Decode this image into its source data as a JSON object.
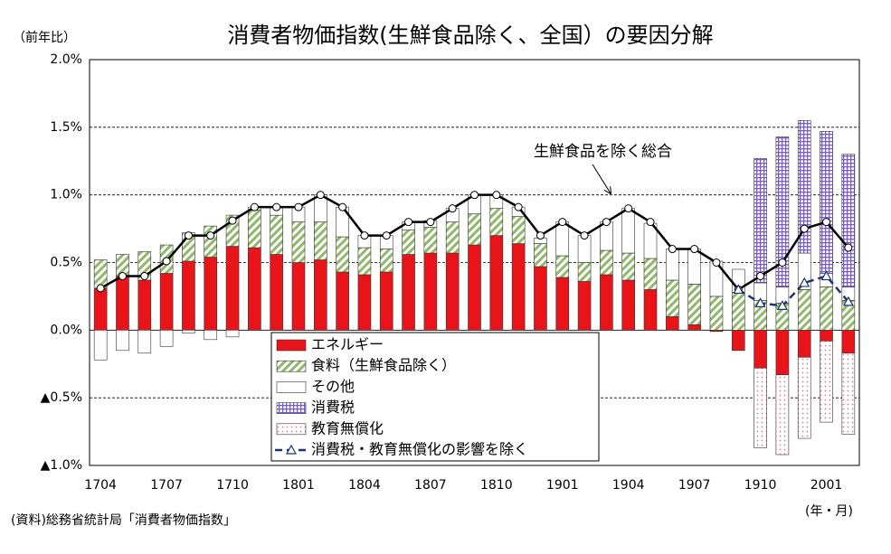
{
  "chart_data": {
    "type": "bar",
    "title": "消費者物価指数(生鮮食品除く、全国）の要因分解",
    "y_label": "（前年比）",
    "x_label": "(年・月)",
    "source": "(資料)総務省統計局「消費者物価指数」",
    "categories": [
      "1704",
      null,
      null,
      "1707",
      null,
      null,
      "1710",
      null,
      null,
      "1801",
      null,
      null,
      "1804",
      null,
      null,
      "1807",
      null,
      null,
      "1810",
      null,
      null,
      "1901",
      null,
      null,
      "1904",
      null,
      null,
      "1907",
      null,
      null,
      "1910",
      null,
      null,
      "2001",
      null
    ],
    "series": [
      {
        "name": "エネルギー",
        "type": "bar",
        "color": "#e8141a",
        "pattern": "solid",
        "values": [
          0.31,
          0.4,
          0.37,
          0.42,
          0.51,
          0.54,
          0.62,
          0.61,
          0.56,
          0.5,
          0.52,
          0.43,
          0.41,
          0.43,
          0.56,
          0.57,
          0.57,
          0.63,
          0.7,
          0.64,
          0.47,
          0.39,
          0.36,
          0.41,
          0.37,
          0.3,
          0.1,
          0.04,
          -0.01,
          -0.15,
          -0.28,
          -0.33,
          -0.2,
          -0.08,
          -0.17
        ]
      },
      {
        "name": "食料（生鮮食品除く）",
        "type": "bar",
        "color": "#8fb86a",
        "pattern": "diagonal",
        "values": [
          0.21,
          0.16,
          0.21,
          0.21,
          0.21,
          0.23,
          0.23,
          0.28,
          0.29,
          0.3,
          0.28,
          0.26,
          0.2,
          0.17,
          0.18,
          0.19,
          0.23,
          0.23,
          0.2,
          0.2,
          0.17,
          0.16,
          0.14,
          0.18,
          0.2,
          0.23,
          0.27,
          0.3,
          0.25,
          0.28,
          0.22,
          0.2,
          0.3,
          0.32,
          0.22
        ]
      },
      {
        "name": "その他",
        "type": "bar",
        "color": "#ffffff",
        "pattern": "solid",
        "values": [
          -0.22,
          -0.15,
          -0.17,
          -0.12,
          -0.02,
          -0.07,
          -0.05,
          0.02,
          0.06,
          0.11,
          0.2,
          0.22,
          0.09,
          0.1,
          0.06,
          0.05,
          0.1,
          0.14,
          0.1,
          0.07,
          0.04,
          0.25,
          0.2,
          0.21,
          0.33,
          0.26,
          0.23,
          0.26,
          0.26,
          0.17,
          0.13,
          0.12,
          0.27,
          0.1,
          0.1
        ]
      },
      {
        "name": "消費税",
        "type": "bar",
        "color": "#7a5cc4",
        "pattern": "grid",
        "values": [
          0,
          0,
          0,
          0,
          0,
          0,
          0,
          0,
          0,
          0,
          0,
          0,
          0,
          0,
          0,
          0,
          0,
          0,
          0,
          0,
          0,
          0,
          0,
          0,
          0,
          0,
          0,
          0,
          0,
          0,
          0.92,
          1.11,
          0.98,
          1.05,
          0.98
        ]
      },
      {
        "name": "教育無償化",
        "type": "bar",
        "color": "#e07a8a",
        "pattern": "dots",
        "values": [
          0,
          0,
          0,
          0,
          0,
          0,
          0,
          0,
          0,
          0,
          0,
          0,
          0,
          0,
          0,
          0,
          0,
          0,
          0,
          0,
          0,
          0,
          0,
          0,
          0,
          0,
          0,
          0,
          0,
          0,
          -0.59,
          -0.59,
          -0.6,
          -0.6,
          -0.6
        ]
      },
      {
        "name": "生鮮食品を除く総合",
        "type": "line",
        "color": "#000000",
        "marker": "circle",
        "legend": false,
        "values": [
          0.31,
          0.4,
          0.4,
          0.51,
          0.7,
          0.7,
          0.81,
          0.91,
          0.91,
          0.91,
          1.0,
          0.91,
          0.7,
          0.7,
          0.8,
          0.8,
          0.9,
          1.0,
          1.0,
          0.91,
          0.7,
          0.8,
          0.7,
          0.8,
          0.9,
          0.8,
          0.6,
          0.6,
          0.5,
          0.3,
          0.4,
          0.5,
          0.75,
          0.8,
          0.61
        ]
      },
      {
        "name": "消費税・教育無償化の影響を除く",
        "type": "line",
        "color": "#1f3370",
        "marker": "triangle",
        "dashed": true,
        "values": [
          null,
          null,
          null,
          null,
          null,
          null,
          null,
          null,
          null,
          null,
          null,
          null,
          null,
          null,
          null,
          null,
          null,
          null,
          null,
          null,
          null,
          null,
          null,
          null,
          null,
          null,
          null,
          null,
          null,
          0.3,
          0.2,
          0.18,
          0.35,
          0.4,
          0.21
        ]
      }
    ],
    "ylim": [
      -1.0,
      2.0
    ],
    "yticks": [
      {
        "value": -1.0,
        "label": "▲1.0%"
      },
      {
        "value": -0.5,
        "label": "▲0.5%"
      },
      {
        "value": 0.0,
        "label": "0.0%"
      },
      {
        "value": 0.5,
        "label": "0.5%"
      },
      {
        "value": 1.0,
        "label": "1.0%"
      },
      {
        "value": 1.5,
        "label": "1.5%"
      },
      {
        "value": 2.0,
        "label": "2.0%"
      }
    ],
    "grid": true
  }
}
